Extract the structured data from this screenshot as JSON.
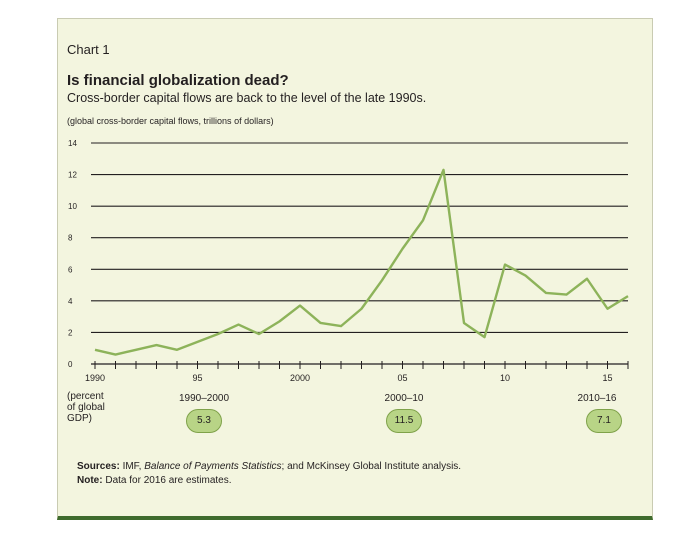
{
  "chart_label": "Chart 1",
  "title": "Is financial globalization dead?",
  "subtitle": "Cross-border capital flows are back to the level of the late 1990s.",
  "unit_note": "(global cross-border capital flows, trillions of dollars)",
  "percent_note": [
    "(percent",
    "of global",
    "GDP)"
  ],
  "periods": [
    {
      "label": "1990–2000",
      "value": "5.3"
    },
    {
      "label": "2000–10",
      "value": "11.5"
    },
    {
      "label": "2010–16",
      "value": "7.1"
    }
  ],
  "sources_label": "Sources:",
  "sources_pre": "IMF, ",
  "sources_italic": "Balance of Payments Statistics",
  "sources_post": "; and McKinsey Global Institute analysis.",
  "note_label": "Note:",
  "note_text": "Data for 2016 are estimates.",
  "colors": {
    "line": "#8db35a",
    "accent_bar": "#3f6b2d",
    "badge": "#b8d486",
    "panel": "#f3f5df"
  },
  "chart_data": {
    "type": "line",
    "x": [
      1990,
      1991,
      1992,
      1993,
      1994,
      1995,
      1996,
      1997,
      1998,
      1999,
      2000,
      2001,
      2002,
      2003,
      2004,
      2005,
      2006,
      2007,
      2008,
      2009,
      2010,
      2011,
      2012,
      2013,
      2014,
      2015,
      2016
    ],
    "series": [
      {
        "values": [
          0.9,
          0.6,
          0.9,
          1.2,
          0.9,
          1.4,
          1.9,
          2.5,
          1.9,
          2.7,
          3.7,
          2.6,
          2.4,
          3.5,
          5.3,
          7.3,
          9.1,
          12.3,
          2.6,
          1.7,
          6.3,
          5.6,
          4.5,
          4.4,
          5.4,
          3.5,
          4.3
        ]
      }
    ],
    "xticks": [
      "1990",
      "95",
      "2000",
      "05",
      "10",
      "15"
    ],
    "yticks": [
      "0",
      "2",
      "4",
      "6",
      "8",
      "10",
      "12",
      "14"
    ],
    "xlim": [
      1990,
      2016
    ],
    "ylim": [
      0,
      14
    ],
    "grid": true
  }
}
